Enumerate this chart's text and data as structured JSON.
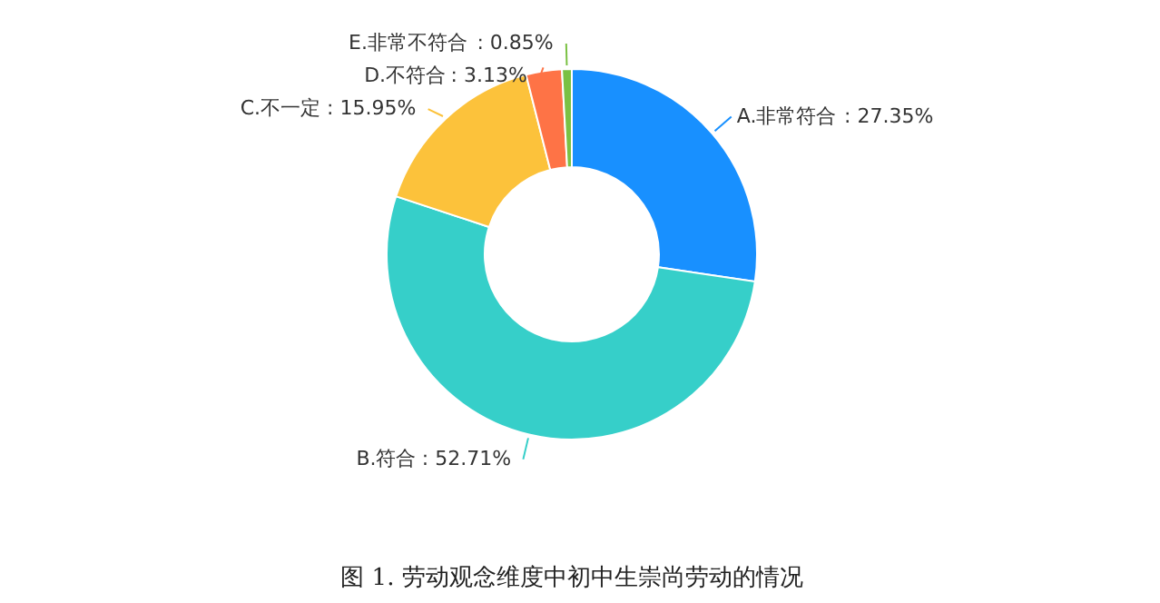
{
  "chart_data": {
    "type": "donut",
    "categories": [
      "A.非常符合",
      "B.符合",
      "C.不一定",
      "D.不符合",
      "E.非常不符合"
    ],
    "values": [
      27.35,
      52.71,
      15.95,
      3.13,
      0.85
    ],
    "colors": [
      "#1890ff",
      "#36cfc9",
      "#fcc23b",
      "#fe7346",
      "#7ac143"
    ],
    "value_labels": [
      ": 27.35%",
      ": 52.71%",
      ": 15.95%",
      ": 3.13%",
      ": 0.85%"
    ],
    "annotations": [
      "图 1. 劳动观念维度中初中生崇尚劳动的情况"
    ]
  }
}
